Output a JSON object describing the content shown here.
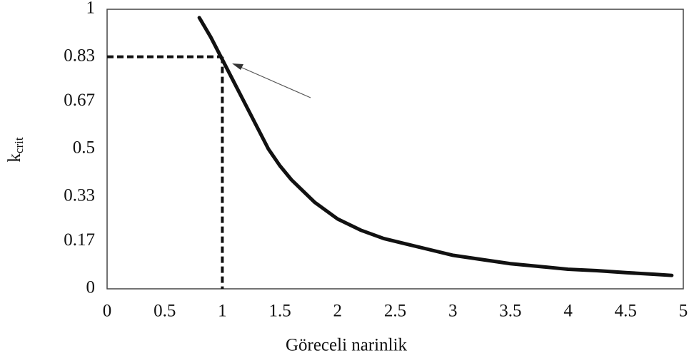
{
  "chart_data": {
    "type": "line",
    "x_label": "Göreceli narinlik",
    "y_label": {
      "main": "k",
      "sub": "crit"
    },
    "series": [
      {
        "name": "kcrit",
        "color": "#111111",
        "x": [
          0.8,
          0.9,
          1.0,
          1.1,
          1.2,
          1.3,
          1.4,
          1.5,
          1.6,
          1.7,
          1.8,
          1.9,
          2.0,
          2.2,
          2.4,
          2.6,
          2.8,
          3.0,
          3.25,
          3.5,
          3.75,
          4.0,
          4.25,
          4.5,
          4.75,
          4.9
        ],
        "values": [
          0.97,
          0.9,
          0.82,
          0.74,
          0.66,
          0.58,
          0.5,
          0.44,
          0.39,
          0.35,
          0.31,
          0.28,
          0.25,
          0.21,
          0.18,
          0.16,
          0.14,
          0.12,
          0.105,
          0.09,
          0.08,
          0.07,
          0.065,
          0.058,
          0.052,
          0.048
        ]
      }
    ],
    "reference_point": {
      "x": 1,
      "y": 0.83
    },
    "xlim": [
      0,
      5
    ],
    "xticks": [
      0,
      0.5,
      1,
      1.5,
      2,
      2.5,
      3,
      3.5,
      4,
      4.5,
      5
    ],
    "ylim": [
      0,
      1
    ],
    "yticks": [
      0,
      0.17,
      0.33,
      0.5,
      0.67,
      0.83,
      1
    ],
    "grid": false
  }
}
